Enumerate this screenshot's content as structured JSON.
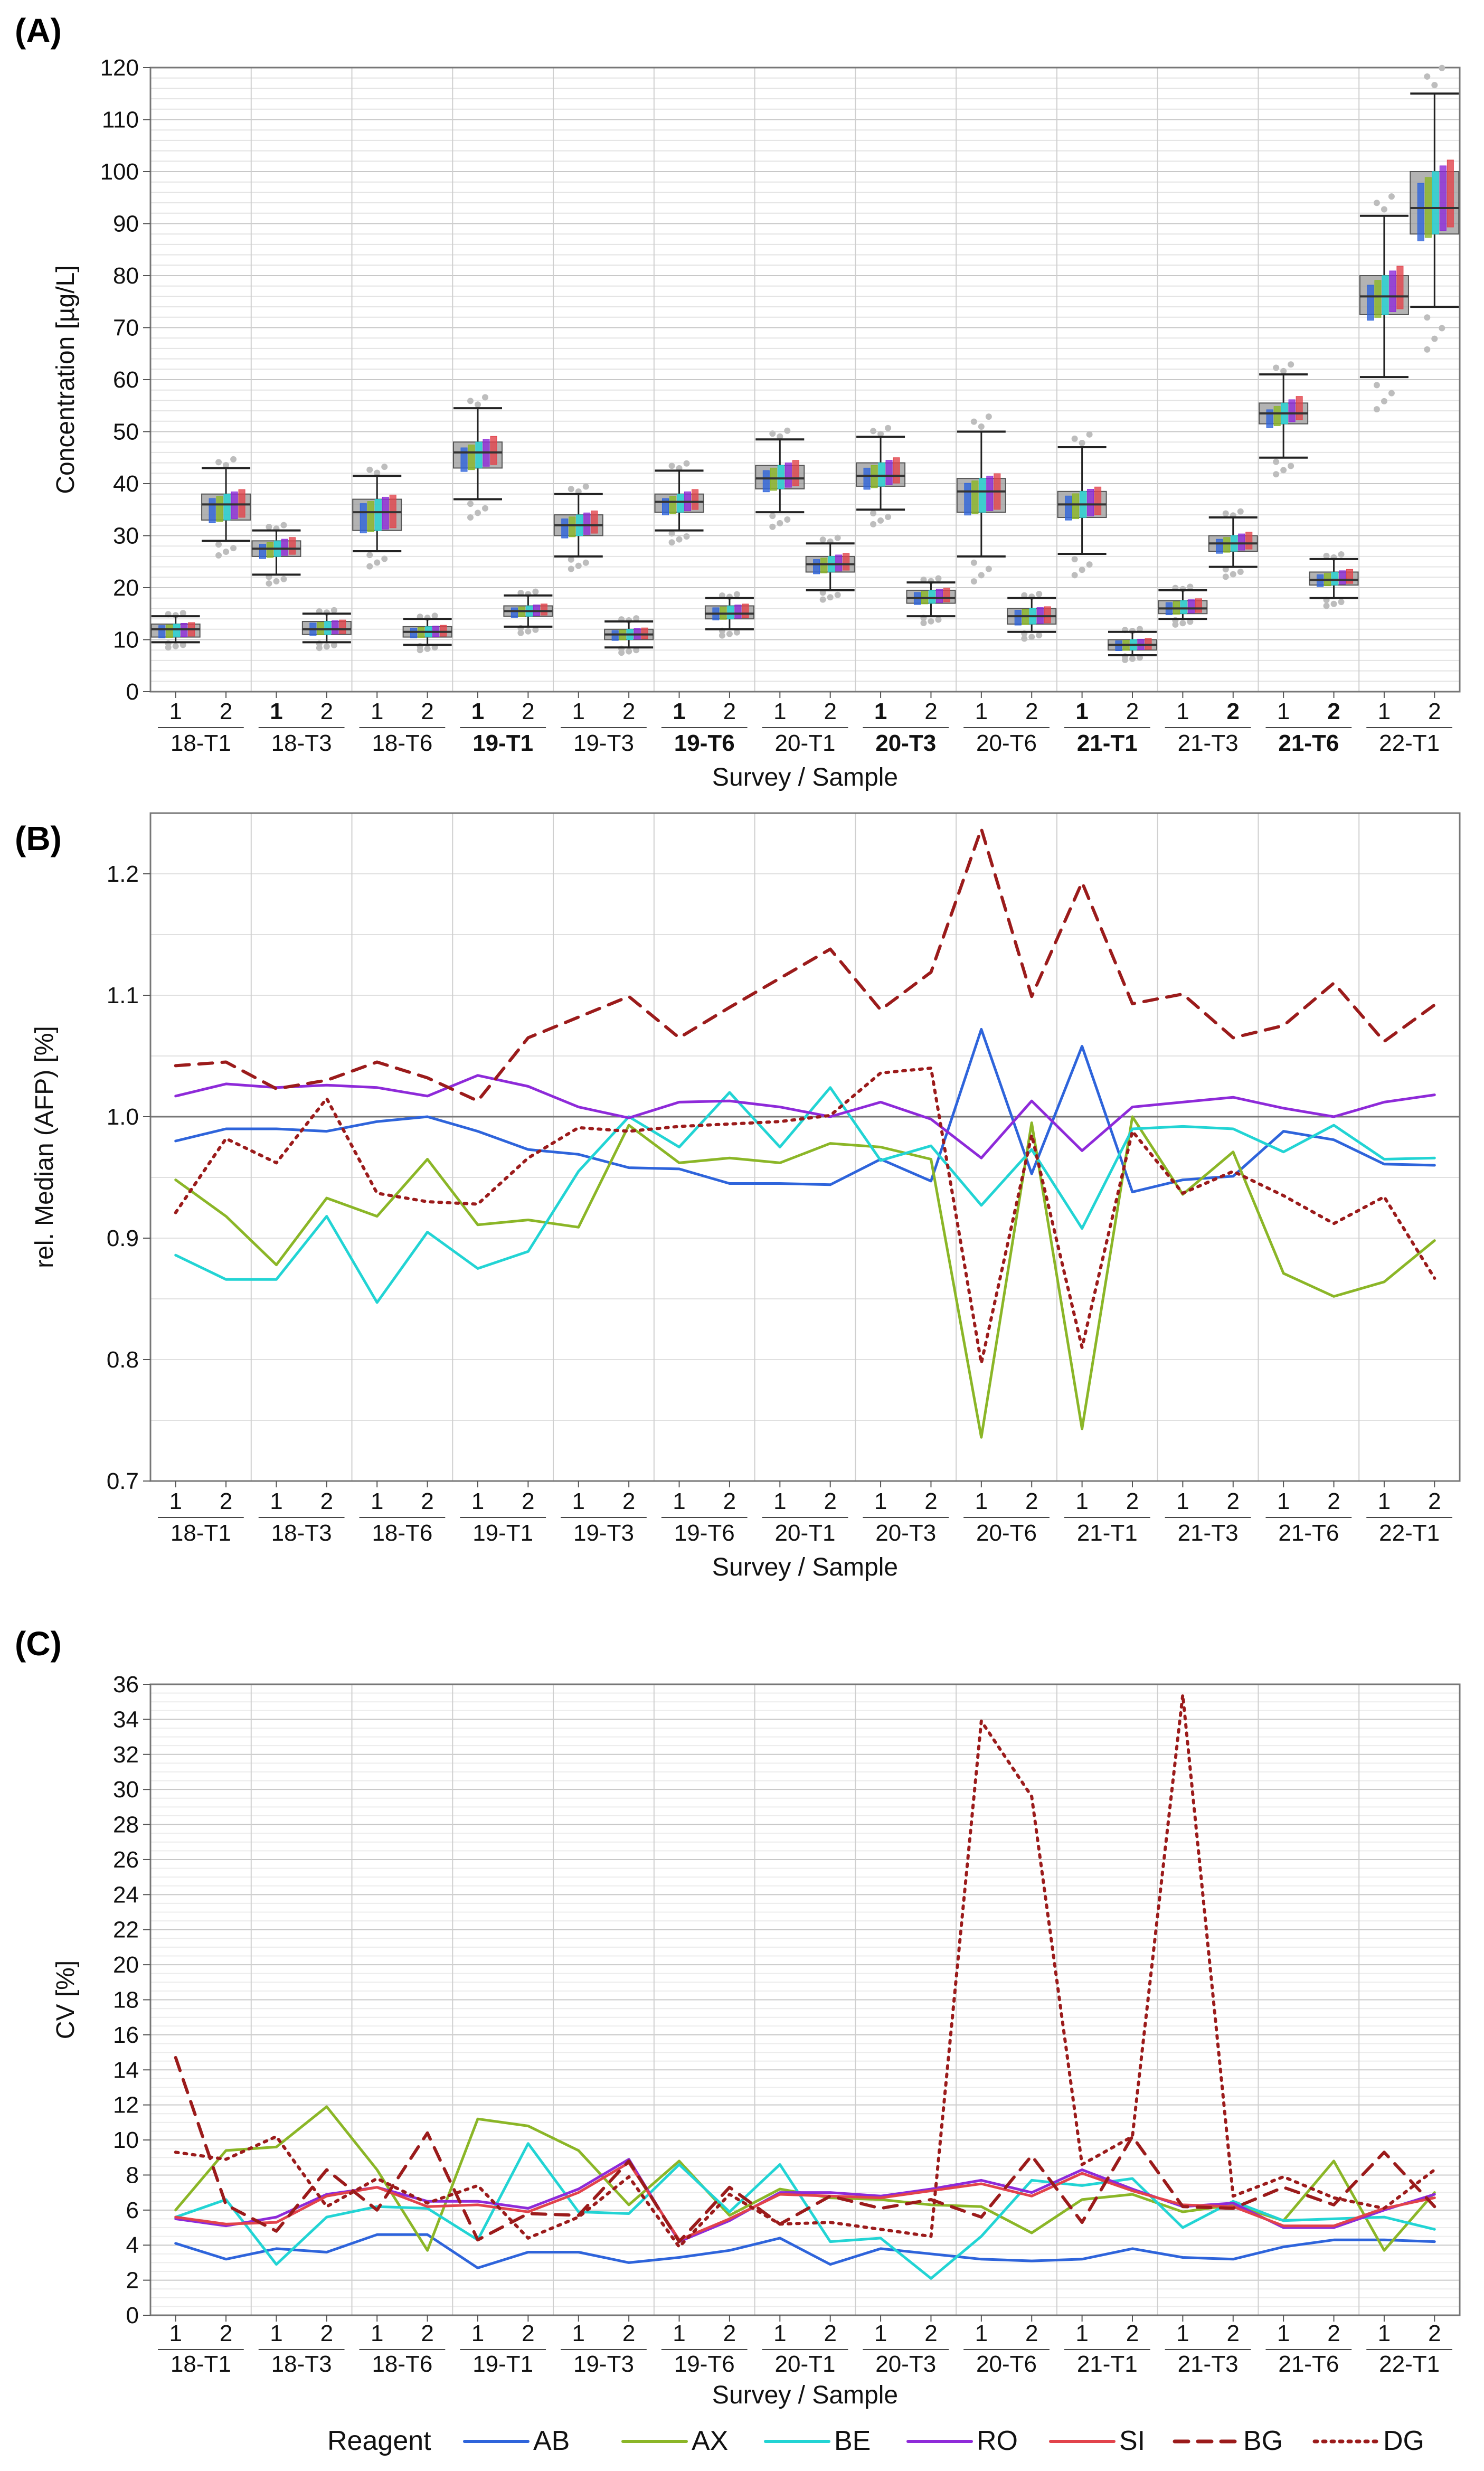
{
  "chart_data": [
    {
      "panel_label": "(A)",
      "type": "box",
      "xlabel": "Survey / Sample",
      "ylabel": "Concentration [µg/L]",
      "ylim": [
        0,
        120
      ],
      "yticks": [
        0,
        10,
        20,
        30,
        40,
        50,
        60,
        70,
        80,
        90,
        100,
        110,
        120
      ],
      "surveys": [
        "18-T1",
        "18-T3",
        "18-T6",
        "19-T1",
        "19-T3",
        "19-T6",
        "20-T1",
        "20-T3",
        "20-T6",
        "21-T1",
        "21-T3",
        "21-T6",
        "22-T1"
      ],
      "bold_surveys": [
        "19-T1",
        "19-T6",
        "20-T3",
        "21-T1",
        "21-T6"
      ],
      "bold_sample_ticks": [
        "18-T3:1",
        "19-T1:1",
        "19-T6:1",
        "20-T3:1",
        "21-T1:1",
        "21-T3:2",
        "21-T6:2"
      ],
      "samples": [
        "1",
        "2"
      ],
      "overall": [
        {
          "survey": "18-T1",
          "sample": "1",
          "q1": 10.5,
          "median": 12,
          "q3": 13,
          "whisker_low": 9.5,
          "whisker_high": 14.5
        },
        {
          "survey": "18-T1",
          "sample": "2",
          "q1": 33,
          "median": 36,
          "q3": 38,
          "whisker_low": 29,
          "whisker_high": 43
        },
        {
          "survey": "18-T3",
          "sample": "1",
          "q1": 26,
          "median": 27.5,
          "q3": 29,
          "whisker_low": 22.5,
          "whisker_high": 31
        },
        {
          "survey": "18-T3",
          "sample": "2",
          "q1": 11,
          "median": 12,
          "q3": 13.5,
          "whisker_low": 9.5,
          "whisker_high": 15
        },
        {
          "survey": "18-T6",
          "sample": "1",
          "q1": 31,
          "median": 34.5,
          "q3": 37,
          "whisker_low": 27,
          "whisker_high": 41.5
        },
        {
          "survey": "18-T6",
          "sample": "2",
          "q1": 10.5,
          "median": 11.5,
          "q3": 12.5,
          "whisker_low": 9,
          "whisker_high": 14
        },
        {
          "survey": "19-T1",
          "sample": "1",
          "q1": 43,
          "median": 46,
          "q3": 48,
          "whisker_low": 37,
          "whisker_high": 54.5
        },
        {
          "survey": "19-T1",
          "sample": "2",
          "q1": 14.5,
          "median": 15.5,
          "q3": 16.5,
          "whisker_low": 12.5,
          "whisker_high": 18.5
        },
        {
          "survey": "19-T3",
          "sample": "1",
          "q1": 30,
          "median": 32,
          "q3": 34,
          "whisker_low": 26,
          "whisker_high": 38
        },
        {
          "survey": "19-T3",
          "sample": "2",
          "q1": 10,
          "median": 11,
          "q3": 12,
          "whisker_low": 8.5,
          "whisker_high": 13.5
        },
        {
          "survey": "19-T6",
          "sample": "1",
          "q1": 34.5,
          "median": 36.5,
          "q3": 38,
          "whisker_low": 31,
          "whisker_high": 42.5
        },
        {
          "survey": "19-T6",
          "sample": "2",
          "q1": 14,
          "median": 15,
          "q3": 16.5,
          "whisker_low": 12,
          "whisker_high": 18
        },
        {
          "survey": "20-T1",
          "sample": "1",
          "q1": 39,
          "median": 41,
          "q3": 43.5,
          "whisker_low": 34.5,
          "whisker_high": 48.5
        },
        {
          "survey": "20-T1",
          "sample": "2",
          "q1": 23,
          "median": 24.5,
          "q3": 26,
          "whisker_low": 19.5,
          "whisker_high": 28.5
        },
        {
          "survey": "20-T3",
          "sample": "1",
          "q1": 39.5,
          "median": 41.5,
          "q3": 44,
          "whisker_low": 35,
          "whisker_high": 49
        },
        {
          "survey": "20-T3",
          "sample": "2",
          "q1": 17,
          "median": 18,
          "q3": 19.5,
          "whisker_low": 14.5,
          "whisker_high": 21
        },
        {
          "survey": "20-T6",
          "sample": "1",
          "q1": 34.5,
          "median": 38.5,
          "q3": 41,
          "whisker_low": 26,
          "whisker_high": 50
        },
        {
          "survey": "20-T6",
          "sample": "2",
          "q1": 13,
          "median": 14.5,
          "q3": 16,
          "whisker_low": 11.5,
          "whisker_high": 18
        },
        {
          "survey": "21-T1",
          "sample": "1",
          "q1": 33.5,
          "median": 36,
          "q3": 38.5,
          "whisker_low": 26.5,
          "whisker_high": 47
        },
        {
          "survey": "21-T1",
          "sample": "2",
          "q1": 8,
          "median": 9,
          "q3": 10,
          "whisker_low": 7,
          "whisker_high": 11.5
        },
        {
          "survey": "21-T3",
          "sample": "1",
          "q1": 15,
          "median": 16,
          "q3": 17.5,
          "whisker_low": 14,
          "whisker_high": 19.5
        },
        {
          "survey": "21-T3",
          "sample": "2",
          "q1": 27,
          "median": 28.5,
          "q3": 30,
          "whisker_low": 24,
          "whisker_high": 33.5
        },
        {
          "survey": "21-T6",
          "sample": "1",
          "q1": 51.5,
          "median": 53.5,
          "q3": 55.5,
          "whisker_low": 45,
          "whisker_high": 61
        },
        {
          "survey": "21-T6",
          "sample": "2",
          "q1": 20.5,
          "median": 21.5,
          "q3": 23,
          "whisker_low": 18,
          "whisker_high": 25.5
        },
        {
          "survey": "22-T1",
          "sample": "1",
          "q1": 72.5,
          "median": 76,
          "q3": 80,
          "whisker_low": 60.5,
          "whisker_high": 91.5
        },
        {
          "survey": "22-T1",
          "sample": "2",
          "q1": 88,
          "median": 93,
          "q3": 100,
          "whisker_low": 74,
          "whisker_high": 115
        }
      ]
    },
    {
      "panel_label": "(B)",
      "type": "line",
      "xlabel": "Survey / Sample",
      "ylabel": "rel. Median (AFP) [%]",
      "ylim": [
        0.7,
        1.25
      ],
      "yticks": [
        "0.7",
        "0.8",
        "0.9",
        "1.0",
        "1.1",
        "1.2"
      ],
      "reference_line": 1.0,
      "surveys": [
        "18-T1",
        "18-T3",
        "18-T6",
        "19-T1",
        "19-T3",
        "19-T6",
        "20-T1",
        "20-T3",
        "20-T6",
        "21-T1",
        "21-T3",
        "21-T6",
        "22-T1"
      ],
      "samples": [
        "1",
        "2"
      ],
      "series": [
        {
          "name": "AB",
          "values": [
            0.98,
            0.99,
            0.99,
            0.988,
            0.996,
            1.0,
            0.988,
            0.973,
            0.969,
            0.958,
            0.957,
            0.945,
            0.945,
            0.944,
            0.965,
            0.947,
            1.072,
            0.953,
            1.058,
            0.938,
            0.948,
            0.951,
            0.988,
            0.981,
            0.961,
            0.96
          ]
        },
        {
          "name": "AX",
          "values": [
            0.948,
            0.918,
            0.878,
            0.933,
            0.918,
            0.965,
            0.911,
            0.915,
            0.909,
            0.993,
            0.962,
            0.966,
            0.962,
            0.978,
            0.975,
            0.965,
            0.736,
            0.995,
            0.743,
            1.0,
            0.936,
            0.971,
            0.871,
            0.852,
            0.864,
            0.898
          ]
        },
        {
          "name": "BE",
          "values": [
            0.886,
            0.866,
            0.866,
            0.918,
            0.847,
            0.905,
            0.875,
            0.889,
            0.955,
            1.0,
            0.975,
            1.02,
            0.975,
            1.024,
            0.964,
            0.976,
            0.927,
            0.973,
            0.908,
            0.99,
            0.992,
            0.99,
            0.971,
            0.993,
            0.965,
            0.966
          ]
        },
        {
          "name": "RO",
          "values": [
            1.017,
            1.027,
            1.024,
            1.026,
            1.024,
            1.017,
            1.034,
            1.025,
            1.008,
            0.999,
            1.012,
            1.013,
            1.008,
            1.0,
            1.012,
            0.998,
            0.966,
            1.013,
            0.972,
            1.008,
            1.012,
            1.016,
            1.007,
            1.0,
            1.012,
            1.018
          ]
        },
        {
          "name": "BG",
          "values": [
            1.042,
            1.045,
            1.023,
            1.03,
            1.045,
            1.032,
            1.013,
            1.065,
            1.082,
            1.099,
            1.065,
            1.09,
            1.114,
            1.138,
            1.088,
            1.119,
            1.237,
            1.099,
            1.193,
            1.093,
            1.101,
            1.065,
            1.075,
            1.11,
            1.062,
            1.092
          ]
        },
        {
          "name": "DG",
          "values": [
            0.921,
            0.982,
            0.962,
            1.015,
            0.937,
            0.93,
            0.928,
            0.966,
            0.991,
            0.988,
            0.992,
            0.994,
            0.996,
            1.001,
            1.036,
            1.04,
            0.797,
            0.985,
            0.81,
            0.988,
            0.937,
            0.955,
            0.935,
            0.912,
            0.934,
            0.867
          ]
        }
      ]
    },
    {
      "panel_label": "(C)",
      "type": "line",
      "xlabel": "Survey / Sample",
      "ylabel": "CV [%]",
      "ylim": [
        0,
        36
      ],
      "yticks": [
        0,
        2,
        4,
        6,
        8,
        10,
        12,
        14,
        16,
        18,
        20,
        22,
        24,
        26,
        28,
        30,
        32,
        34,
        36
      ],
      "surveys": [
        "18-T1",
        "18-T3",
        "18-T6",
        "19-T1",
        "19-T3",
        "19-T6",
        "20-T1",
        "20-T3",
        "20-T6",
        "21-T1",
        "21-T3",
        "21-T6",
        "22-T1"
      ],
      "samples": [
        "1",
        "2"
      ],
      "series": [
        {
          "name": "AB",
          "values": [
            4.1,
            3.2,
            3.8,
            3.6,
            4.6,
            4.6,
            2.7,
            3.6,
            3.6,
            3.0,
            3.3,
            3.7,
            4.4,
            2.9,
            3.8,
            3.5,
            3.2,
            3.1,
            3.2,
            3.8,
            3.3,
            3.2,
            3.9,
            4.3,
            4.3,
            4.2
          ]
        },
        {
          "name": "AX",
          "values": [
            6.0,
            9.4,
            9.6,
            11.9,
            8.3,
            3.7,
            11.2,
            10.8,
            9.4,
            6.3,
            8.8,
            5.7,
            7.2,
            6.7,
            6.6,
            6.3,
            6.2,
            4.7,
            6.6,
            6.9,
            5.9,
            6.3,
            5.4,
            8.8,
            3.7,
            7.0
          ]
        },
        {
          "name": "BE",
          "values": [
            5.6,
            6.6,
            2.9,
            5.6,
            6.2,
            6.1,
            4.3,
            9.8,
            5.9,
            5.8,
            8.6,
            5.9,
            8.6,
            4.2,
            4.4,
            2.1,
            4.5,
            7.7,
            7.4,
            7.8,
            5.0,
            6.5,
            5.4,
            5.5,
            5.6,
            4.9
          ]
        },
        {
          "name": "RO",
          "values": [
            5.5,
            5.1,
            5.6,
            6.9,
            7.3,
            6.5,
            6.5,
            6.1,
            7.2,
            8.9,
            4.2,
            5.4,
            7.0,
            7.0,
            6.8,
            7.2,
            7.7,
            7.0,
            8.3,
            7.2,
            6.2,
            6.4,
            5.0,
            5.0,
            6.0,
            6.9
          ]
        },
        {
          "name": "SI",
          "values": [
            5.6,
            5.2,
            5.3,
            6.8,
            7.3,
            6.2,
            6.3,
            5.9,
            7.0,
            8.7,
            4.3,
            5.5,
            6.9,
            6.8,
            6.7,
            7.1,
            7.5,
            6.8,
            8.1,
            7.1,
            6.3,
            6.2,
            5.1,
            5.1,
            6.1,
            6.7
          ]
        },
        {
          "name": "BG",
          "values": [
            14.7,
            6.3,
            4.8,
            8.3,
            6.0,
            10.4,
            4.3,
            5.8,
            5.7,
            8.8,
            4.2,
            7.3,
            5.2,
            6.8,
            6.1,
            6.6,
            5.6,
            9.1,
            5.3,
            10.2,
            6.2,
            6.1,
            7.3,
            6.3,
            9.3,
            6.2
          ]
        },
        {
          "name": "DG",
          "values": [
            9.3,
            8.9,
            10.2,
            6.2,
            7.8,
            6.4,
            7.4,
            4.4,
            5.6,
            7.9,
            3.9,
            6.9,
            5.2,
            5.3,
            4.9,
            4.5,
            33.9,
            29.6,
            8.6,
            10.2,
            35.4,
            6.8,
            7.9,
            6.7,
            6.1,
            8.3
          ]
        }
      ]
    }
  ],
  "legend": {
    "title": "Reagent",
    "items": [
      {
        "name": "AB",
        "color": "#2e64db",
        "style": "solid"
      },
      {
        "name": "AX",
        "color": "#8bb627",
        "style": "solid"
      },
      {
        "name": "BE",
        "color": "#22d4d4",
        "style": "solid"
      },
      {
        "name": "RO",
        "color": "#8e2ad9",
        "style": "solid"
      },
      {
        "name": "SI",
        "color": "#e2434b",
        "style": "solid"
      },
      {
        "name": "BG",
        "color": "#9b1b1b",
        "style": "dashed"
      },
      {
        "name": "DG",
        "color": "#9b1b1b",
        "style": "dotted"
      }
    ]
  }
}
